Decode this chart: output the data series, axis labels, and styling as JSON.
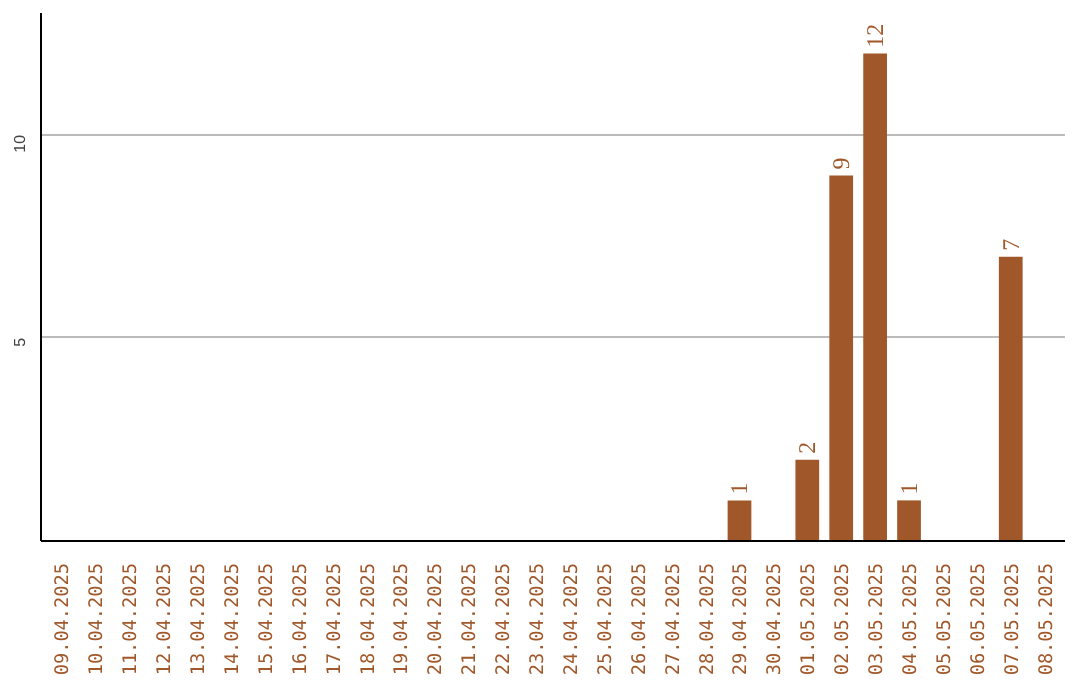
{
  "chart_data": {
    "type": "bar",
    "categories": [
      "09.04.2025",
      "10.04.2025",
      "11.04.2025",
      "12.04.2025",
      "13.04.2025",
      "14.04.2025",
      "15.04.2025",
      "16.04.2025",
      "17.04.2025",
      "18.04.2025",
      "19.04.2025",
      "20.04.2025",
      "21.04.2025",
      "22.04.2025",
      "23.04.2025",
      "24.04.2025",
      "25.04.2025",
      "26.04.2025",
      "27.04.2025",
      "28.04.2025",
      "29.04.2025",
      "30.04.2025",
      "01.05.2025",
      "02.05.2025",
      "03.05.2025",
      "04.05.2025",
      "05.05.2025",
      "06.05.2025",
      "07.05.2025",
      "08.05.2025"
    ],
    "values": [
      0,
      0,
      0,
      0,
      0,
      0,
      0,
      0,
      0,
      0,
      0,
      0,
      0,
      0,
      0,
      0,
      0,
      0,
      0,
      0,
      1,
      0,
      2,
      9,
      12,
      1,
      0,
      0,
      7,
      0
    ],
    "value_labels": [
      null,
      null,
      null,
      null,
      null,
      null,
      null,
      null,
      null,
      null,
      null,
      null,
      null,
      null,
      null,
      null,
      null,
      null,
      null,
      null,
      "1",
      null,
      "2",
      "9",
      "12",
      "1",
      null,
      null,
      "7",
      null
    ],
    "color": "#a0582a",
    "ylim": [
      0,
      13
    ],
    "yticks": [
      5,
      10
    ],
    "grid": "y"
  }
}
